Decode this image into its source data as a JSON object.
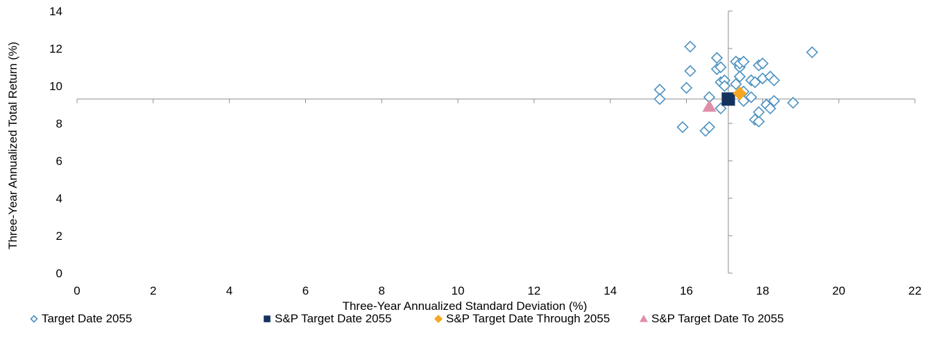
{
  "chart_data": {
    "type": "scatter",
    "title": "",
    "xlabel": "Three-Year Annualized Standard Deviation (%)",
    "ylabel": "Three-Year Annualized Total Return (%)",
    "xlim": [
      0,
      22
    ],
    "ylim": [
      0,
      14
    ],
    "xticks": [
      "0",
      "2",
      "4",
      "6",
      "8",
      "10",
      "12",
      "14",
      "16",
      "18",
      "20",
      "22"
    ],
    "yticks": [
      "0",
      "2",
      "4",
      "6",
      "8",
      "10",
      "12",
      "14"
    ],
    "crosshair": {
      "x": 17.1,
      "y": 9.3
    },
    "grid": false,
    "legend_position": "bottom",
    "series": [
      {
        "name": "Target Date 2055",
        "marker": "open-diamond",
        "color": "#4a90c0",
        "points": [
          [
            15.3,
            9.8
          ],
          [
            15.3,
            9.3
          ],
          [
            15.9,
            7.8
          ],
          [
            16.0,
            9.9
          ],
          [
            16.1,
            12.1
          ],
          [
            16.1,
            10.8
          ],
          [
            16.5,
            7.6
          ],
          [
            16.6,
            7.8
          ],
          [
            16.6,
            9.4
          ],
          [
            16.8,
            11.5
          ],
          [
            16.8,
            10.9
          ],
          [
            16.9,
            11.0
          ],
          [
            16.9,
            8.8
          ],
          [
            16.9,
            10.2
          ],
          [
            17.0,
            10.3
          ],
          [
            17.0,
            10.0
          ],
          [
            17.3,
            11.3
          ],
          [
            17.3,
            10.1
          ],
          [
            17.4,
            11.0
          ],
          [
            17.4,
            11.2
          ],
          [
            17.4,
            10.5
          ],
          [
            17.5,
            11.3
          ],
          [
            17.5,
            9.7
          ],
          [
            17.5,
            9.2
          ],
          [
            17.7,
            10.3
          ],
          [
            17.7,
            9.4
          ],
          [
            17.8,
            8.2
          ],
          [
            17.8,
            10.2
          ],
          [
            17.9,
            8.1
          ],
          [
            17.9,
            8.6
          ],
          [
            17.9,
            11.1
          ],
          [
            18.0,
            11.2
          ],
          [
            18.0,
            10.4
          ],
          [
            18.1,
            9.0
          ],
          [
            18.2,
            8.8
          ],
          [
            18.2,
            10.5
          ],
          [
            18.3,
            10.3
          ],
          [
            18.3,
            9.2
          ],
          [
            18.8,
            9.1
          ],
          [
            19.3,
            11.8
          ]
        ]
      },
      {
        "name": "S&P Target Date 2055",
        "marker": "filled-square",
        "color": "#13325d",
        "points": [
          [
            17.1,
            9.3
          ]
        ]
      },
      {
        "name": "S&P Target Date Through 2055",
        "marker": "filled-diamond",
        "color": "#f5a623",
        "points": [
          [
            17.4,
            9.6
          ]
        ]
      },
      {
        "name": "S&P Target Date To 2055",
        "marker": "filled-triangle",
        "color": "#e08fa8",
        "points": [
          [
            16.6,
            8.9
          ]
        ]
      }
    ]
  }
}
